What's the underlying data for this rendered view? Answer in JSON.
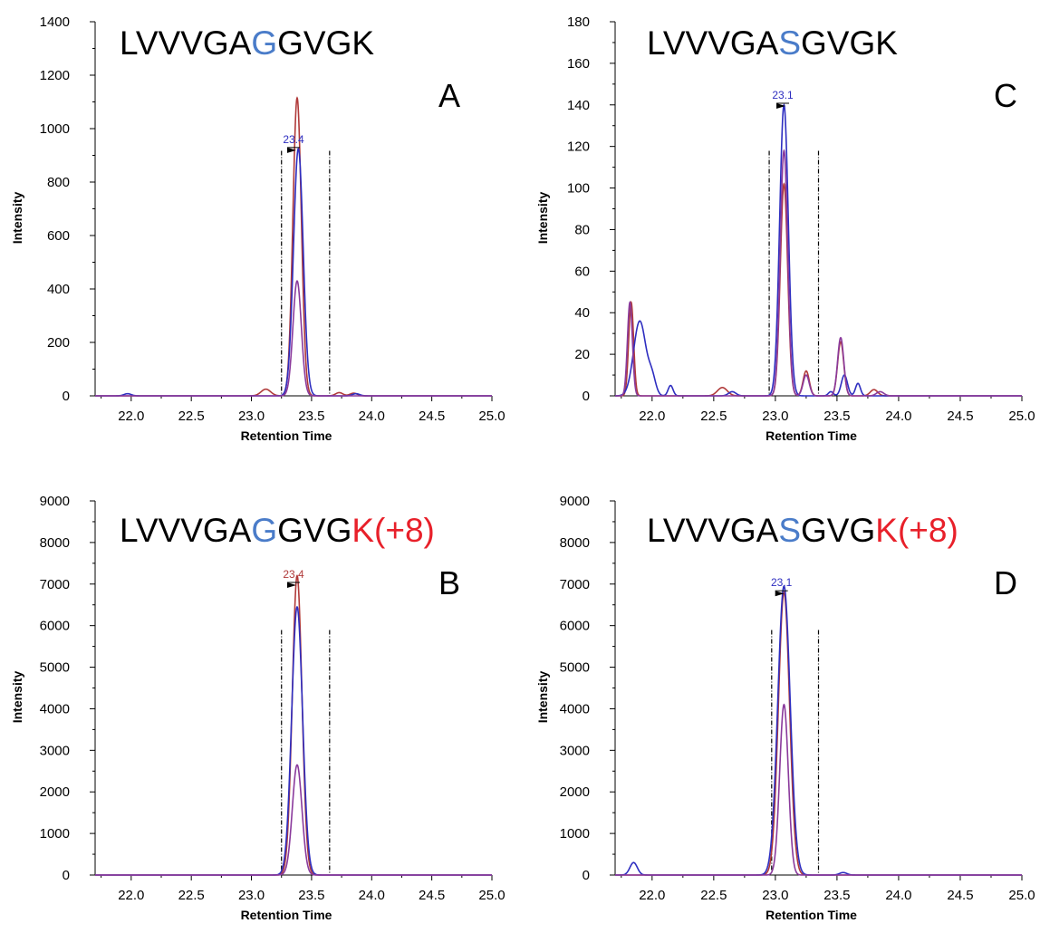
{
  "chart_data": [
    {
      "panel": "A",
      "type": "line",
      "peptide": [
        {
          "text": "LVVVGA",
          "color": "#000000"
        },
        {
          "text": "G",
          "color": "#4a7cc9"
        },
        {
          "text": "GVGK",
          "color": "#000000"
        }
      ],
      "xlabel": "Retention Time",
      "ylabel": "Intensity",
      "xlim": [
        21.7,
        25.0
      ],
      "ylim": [
        0,
        1400
      ],
      "xticks": [
        22.0,
        22.5,
        23.0,
        23.5,
        24.0,
        24.5,
        25.0
      ],
      "xtick_labels": [
        "22.0",
        "22.5",
        "23.0",
        "23.5",
        "24.0",
        "24.5",
        "25.0"
      ],
      "yticks": [
        0,
        200,
        400,
        600,
        800,
        1000,
        1200,
        1400
      ],
      "ytick_labels": [
        "0",
        "200",
        "400",
        "600",
        "800",
        "1000",
        "1200",
        "1400"
      ],
      "boundaries": [
        23.25,
        23.65
      ],
      "peak_label": {
        "text": "23.4",
        "x": 23.35,
        "y": 970,
        "color": "#2e2ec0"
      },
      "series": [
        {
          "color": "#b03a3a",
          "peaks": [
            [
              23.38,
              1115,
              0.035
            ],
            [
              23.12,
              25,
              0.04
            ],
            [
              23.73,
              12,
              0.03
            ],
            [
              23.85,
              10,
              0.03
            ]
          ]
        },
        {
          "color": "#2e2ec0",
          "peaks": [
            [
              23.39,
              925,
              0.04
            ],
            [
              21.97,
              8,
              0.03
            ],
            [
              23.87,
              8,
              0.03
            ]
          ]
        },
        {
          "color": "#8a3a9c",
          "peaks": [
            [
              23.38,
              430,
              0.035
            ]
          ]
        }
      ],
      "grid": false
    },
    {
      "panel": "B",
      "type": "line",
      "peptide": [
        {
          "text": "LVVVGA",
          "color": "#000000"
        },
        {
          "text": "G",
          "color": "#4a7cc9"
        },
        {
          "text": "GVG",
          "color": "#000000"
        },
        {
          "text": "K(+8)",
          "color": "#e8202a"
        }
      ],
      "xlabel": "Retention Time",
      "ylabel": "Intensity",
      "xlim": [
        21.7,
        25.0
      ],
      "ylim": [
        0,
        9000
      ],
      "xticks": [
        22.0,
        22.5,
        23.0,
        23.5,
        24.0,
        24.5,
        25.0
      ],
      "xtick_labels": [
        "22.0",
        "22.5",
        "23.0",
        "23.5",
        "24.0",
        "24.5",
        "25.0"
      ],
      "yticks": [
        0,
        1000,
        2000,
        3000,
        4000,
        5000,
        6000,
        7000,
        8000,
        9000
      ],
      "ytick_labels": [
        "0",
        "1000",
        "2000",
        "3000",
        "4000",
        "5000",
        "6000",
        "7000",
        "8000",
        "9000"
      ],
      "boundaries": [
        23.25,
        23.65
      ],
      "peak_label": {
        "text": "23.4",
        "x": 23.35,
        "y": 7300,
        "color": "#b03a3a"
      },
      "series": [
        {
          "color": "#b03a3a",
          "peaks": [
            [
              23.38,
              7200,
              0.04
            ]
          ]
        },
        {
          "color": "#2e2ec0",
          "peaks": [
            [
              23.38,
              6450,
              0.045
            ]
          ]
        },
        {
          "color": "#8a3a9c",
          "peaks": [
            [
              23.38,
              2650,
              0.04
            ]
          ]
        }
      ],
      "grid": false
    },
    {
      "panel": "C",
      "type": "line",
      "peptide": [
        {
          "text": "LVVVGA",
          "color": "#000000"
        },
        {
          "text": "S",
          "color": "#4a7cc9"
        },
        {
          "text": "GVGK",
          "color": "#000000"
        }
      ],
      "xlabel": "Retention Time",
      "ylabel": "Intensity",
      "xlim": [
        21.7,
        25.0
      ],
      "ylim": [
        0,
        180
      ],
      "xticks": [
        22.0,
        22.5,
        23.0,
        23.5,
        24.0,
        24.5,
        25.0
      ],
      "xtick_labels": [
        "22.0",
        "22.5",
        "23.0",
        "23.5",
        "24.0",
        "24.5",
        "25.0"
      ],
      "yticks": [
        0,
        20,
        40,
        60,
        80,
        100,
        120,
        140,
        160,
        180
      ],
      "ytick_labels": [
        "0",
        "20",
        "40",
        "60",
        "80",
        "100",
        "120",
        "140",
        "160",
        "180"
      ],
      "boundaries": [
        22.95,
        23.35
      ],
      "peak_label": {
        "text": "23.1",
        "x": 23.06,
        "y": 146,
        "color": "#2e2ec0"
      },
      "series": [
        {
          "color": "#b03a3a",
          "peaks": [
            [
              23.07,
              102,
              0.03
            ],
            [
              21.83,
              45,
              0.02
            ],
            [
              22.57,
              4,
              0.04
            ],
            [
              23.25,
              12,
              0.025
            ],
            [
              23.53,
              26,
              0.025
            ],
            [
              23.8,
              3,
              0.03
            ]
          ]
        },
        {
          "color": "#2e2ec0",
          "peaks": [
            [
              23.07,
              140,
              0.035
            ],
            [
              21.9,
              36,
              0.05
            ],
            [
              22.0,
              8,
              0.03
            ],
            [
              22.15,
              5,
              0.02
            ],
            [
              22.65,
              2,
              0.03
            ],
            [
              23.56,
              10,
              0.025
            ],
            [
              23.67,
              6,
              0.02
            ],
            [
              23.45,
              2,
              0.02
            ]
          ]
        },
        {
          "color": "#8a3a9c",
          "peaks": [
            [
              23.07,
              118,
              0.03
            ],
            [
              21.82,
              45,
              0.02
            ],
            [
              23.53,
              28,
              0.025
            ],
            [
              23.25,
              10,
              0.025
            ],
            [
              23.85,
              2,
              0.03
            ]
          ]
        }
      ],
      "grid": false
    },
    {
      "panel": "D",
      "type": "line",
      "peptide": [
        {
          "text": "LVVVGA",
          "color": "#000000"
        },
        {
          "text": "S",
          "color": "#4a7cc9"
        },
        {
          "text": "GVG",
          "color": "#000000"
        },
        {
          "text": "K(+8)",
          "color": "#e8202a"
        }
      ],
      "xlabel": "Retention Time",
      "ylabel": "Intensity",
      "xlim": [
        21.7,
        25.0
      ],
      "ylim": [
        0,
        9000
      ],
      "xticks": [
        22.0,
        22.5,
        23.0,
        23.5,
        24.0,
        24.5,
        25.0
      ],
      "xtick_labels": [
        "22.0",
        "22.5",
        "23.0",
        "23.5",
        "24.0",
        "24.5",
        "25.0"
      ],
      "yticks": [
        0,
        1000,
        2000,
        3000,
        4000,
        5000,
        6000,
        7000,
        8000,
        9000
      ],
      "ytick_labels": [
        "0",
        "1000",
        "2000",
        "3000",
        "4000",
        "5000",
        "6000",
        "7000",
        "8000",
        "9000"
      ],
      "boundaries": [
        22.97,
        23.35
      ],
      "peak_label": {
        "text": "23.1",
        "x": 23.05,
        "y": 7100,
        "color": "#2e2ec0"
      },
      "series": [
        {
          "color": "#b03a3a",
          "peaks": [
            [
              23.07,
              6800,
              0.045
            ]
          ]
        },
        {
          "color": "#2e2ec0",
          "peaks": [
            [
              23.07,
              6950,
              0.05
            ],
            [
              21.85,
              300,
              0.03
            ],
            [
              23.55,
              60,
              0.03
            ]
          ]
        },
        {
          "color": "#8a3a9c",
          "peaks": [
            [
              23.07,
              4100,
              0.035
            ]
          ]
        }
      ],
      "grid": false
    }
  ]
}
